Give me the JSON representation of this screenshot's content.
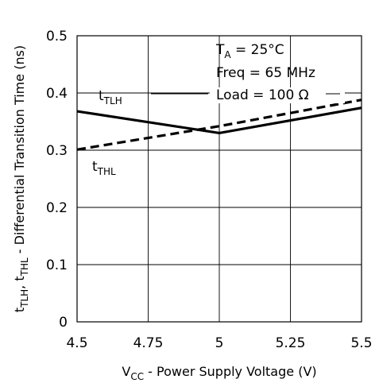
{
  "chart_data": {
    "type": "line",
    "xlim": [
      4.5,
      5.5
    ],
    "ylim": [
      0,
      0.5
    ],
    "x_ticks": [
      "4.5",
      "4.75",
      "5",
      "5.25",
      "5.5"
    ],
    "x_tick_values": [
      4.5,
      4.75,
      5,
      5.25,
      5.5
    ],
    "y_ticks": [
      "0",
      "0.1",
      "0.2",
      "0.3",
      "0.4",
      "0.5"
    ],
    "y_tick_values": [
      0,
      0.1,
      0.2,
      0.3,
      0.4,
      0.5
    ],
    "grid": true,
    "xlabel": {
      "main": "V",
      "sub": "CC",
      "rest": " - Power Supply Voltage (V)"
    },
    "ylabel": {
      "t1": "t",
      "s1": "TLH",
      "mid": ", t",
      "s2": "THL",
      "rest": " - Differential Transition Time (ns)"
    },
    "annotations": {
      "ta_main": "T",
      "ta_sub": "A",
      "ta_rest": " = 25°C",
      "freq": "Freq = 65 MHz",
      "load": "Load = 100 Ω"
    },
    "series": [
      {
        "name_main": "t",
        "name_sub": "TLH",
        "color": "#000000",
        "style": "solid",
        "x": [
          4.5,
          5.0,
          5.5
        ],
        "y": [
          0.368,
          0.33,
          0.374
        ]
      },
      {
        "name_main": "t",
        "name_sub": "THL",
        "color": "#000000",
        "style": "dashed",
        "x": [
          4.5,
          5.0,
          5.5
        ],
        "y": [
          0.301,
          0.342,
          0.388
        ]
      }
    ]
  }
}
